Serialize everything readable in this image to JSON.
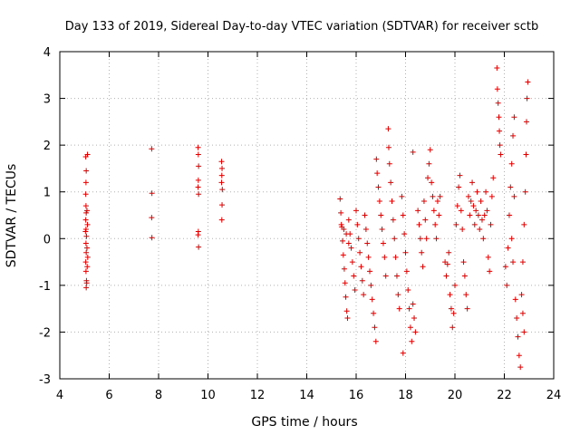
{
  "chart_data": {
    "type": "scatter",
    "title": "Day 133 of 2019, Sidereal Day-to-day VTEC variation (SDTVAR) for receiver sctb",
    "xlabel": "GPS time / hours",
    "ylabel": "SDTVAR / TECUs",
    "xlim": [
      4,
      24
    ],
    "ylim": [
      -3,
      4
    ],
    "xticks": [
      4,
      6,
      8,
      10,
      12,
      14,
      16,
      18,
      20,
      22,
      24
    ],
    "yticks": [
      -3,
      -2,
      -1,
      0,
      1,
      2,
      3,
      4
    ],
    "xtick_labels": [
      "4",
      "6",
      "8",
      "10",
      "12",
      "14",
      "16",
      "18",
      "20",
      "22",
      "24"
    ],
    "ytick_labels": [
      "-3",
      "-2",
      "-1",
      "0",
      "1",
      "2",
      "3",
      "4"
    ],
    "grid": true,
    "marker": "+",
    "color": "#dd0000",
    "series": [
      {
        "name": "SDTVAR",
        "points": [
          [
            5.05,
            1.75
          ],
          [
            5.07,
            1.45
          ],
          [
            5.06,
            1.2
          ],
          [
            5.05,
            0.95
          ],
          [
            5.06,
            0.7
          ],
          [
            5.07,
            0.55
          ],
          [
            5.05,
            0.4
          ],
          [
            5.06,
            0.2
          ],
          [
            5.08,
            0.05
          ],
          [
            5.06,
            -0.1
          ],
          [
            5.07,
            -0.3
          ],
          [
            5.05,
            -0.5
          ],
          [
            5.06,
            -0.7
          ],
          [
            5.08,
            -0.9
          ],
          [
            5.07,
            -1.05
          ],
          [
            5.12,
            0.3
          ],
          [
            5.1,
            -0.2
          ],
          [
            5.12,
            1.8
          ],
          [
            5.1,
            0.6
          ],
          [
            5.09,
            -0.95
          ],
          [
            5.11,
            -0.6
          ],
          [
            5.04,
            0.15
          ],
          [
            5.13,
            -0.4
          ],
          [
            7.72,
            1.92
          ],
          [
            7.73,
            0.97
          ],
          [
            7.72,
            0.45
          ],
          [
            7.73,
            0.02
          ],
          [
            9.6,
            1.95
          ],
          [
            9.62,
            1.55
          ],
          [
            9.61,
            1.25
          ],
          [
            9.6,
            1.1
          ],
          [
            9.62,
            0.95
          ],
          [
            9.61,
            0.15
          ],
          [
            9.6,
            0.08
          ],
          [
            9.62,
            -0.18
          ],
          [
            9.61,
            1.8
          ],
          [
            10.55,
            1.65
          ],
          [
            10.57,
            1.5
          ],
          [
            10.56,
            1.35
          ],
          [
            10.55,
            1.2
          ],
          [
            10.57,
            0.72
          ],
          [
            10.56,
            0.4
          ],
          [
            10.58,
            1.05
          ],
          [
            15.35,
            0.85
          ],
          [
            15.38,
            0.55
          ],
          [
            15.42,
            0.25
          ],
          [
            15.45,
            -0.05
          ],
          [
            15.48,
            -0.35
          ],
          [
            15.52,
            -0.65
          ],
          [
            15.55,
            -0.95
          ],
          [
            15.58,
            -1.25
          ],
          [
            15.62,
            -1.55
          ],
          [
            15.65,
            -1.7
          ],
          [
            15.7,
            0.4
          ],
          [
            15.75,
            0.1
          ],
          [
            15.8,
            -0.2
          ],
          [
            15.85,
            -0.5
          ],
          [
            15.9,
            -0.8
          ],
          [
            15.95,
            -1.1
          ],
          [
            15.4,
            0.3
          ],
          [
            15.5,
            0.2
          ],
          [
            15.6,
            0.1
          ],
          [
            15.7,
            -0.1
          ],
          [
            16.0,
            0.6
          ],
          [
            16.05,
            0.3
          ],
          [
            16.1,
            0.0
          ],
          [
            16.15,
            -0.3
          ],
          [
            16.2,
            -0.6
          ],
          [
            16.25,
            -0.9
          ],
          [
            16.3,
            -1.2
          ],
          [
            16.35,
            0.5
          ],
          [
            16.4,
            0.2
          ],
          [
            16.45,
            -0.1
          ],
          [
            16.5,
            -0.4
          ],
          [
            16.55,
            -0.7
          ],
          [
            16.6,
            -1.0
          ],
          [
            16.65,
            -1.3
          ],
          [
            16.7,
            -1.6
          ],
          [
            16.75,
            -1.9
          ],
          [
            16.8,
            -2.2
          ],
          [
            16.82,
            1.7
          ],
          [
            16.85,
            1.4
          ],
          [
            16.9,
            1.1
          ],
          [
            16.95,
            0.8
          ],
          [
            17.0,
            0.5
          ],
          [
            17.05,
            0.2
          ],
          [
            17.1,
            -0.1
          ],
          [
            17.15,
            -0.4
          ],
          [
            17.2,
            -0.8
          ],
          [
            17.3,
            2.35
          ],
          [
            17.32,
            1.95
          ],
          [
            17.35,
            1.6
          ],
          [
            17.4,
            1.2
          ],
          [
            17.45,
            0.8
          ],
          [
            17.5,
            0.4
          ],
          [
            17.55,
            0.0
          ],
          [
            17.6,
            -0.4
          ],
          [
            17.65,
            -0.8
          ],
          [
            17.7,
            -1.2
          ],
          [
            17.75,
            -1.5
          ],
          [
            17.85,
            0.9
          ],
          [
            17.9,
            0.5
          ],
          [
            17.95,
            0.1
          ],
          [
            18.0,
            -0.3
          ],
          [
            18.05,
            -0.7
          ],
          [
            18.1,
            -1.1
          ],
          [
            18.15,
            -1.5
          ],
          [
            18.2,
            -1.9
          ],
          [
            18.25,
            -2.2
          ],
          [
            17.9,
            -2.45
          ],
          [
            18.3,
            1.85
          ],
          [
            18.3,
            -1.4
          ],
          [
            18.35,
            -1.7
          ],
          [
            18.4,
            -2.0
          ],
          [
            18.5,
            0.6
          ],
          [
            18.55,
            0.3
          ],
          [
            18.6,
            0.0
          ],
          [
            18.65,
            -0.3
          ],
          [
            18.7,
            -0.6
          ],
          [
            18.75,
            0.8
          ],
          [
            18.8,
            0.4
          ],
          [
            18.85,
            0.0
          ],
          [
            18.9,
            1.3
          ],
          [
            18.95,
            1.6
          ],
          [
            19.0,
            1.9
          ],
          [
            19.05,
            1.2
          ],
          [
            19.1,
            0.9
          ],
          [
            19.15,
            0.6
          ],
          [
            19.2,
            0.3
          ],
          [
            19.25,
            0.0
          ],
          [
            19.3,
            0.8
          ],
          [
            19.35,
            0.5
          ],
          [
            19.4,
            0.9
          ],
          [
            19.6,
            -0.5
          ],
          [
            19.65,
            -0.8
          ],
          [
            19.7,
            -0.55
          ],
          [
            19.75,
            -0.3
          ],
          [
            19.8,
            -1.2
          ],
          [
            19.85,
            -1.5
          ],
          [
            19.9,
            -1.9
          ],
          [
            19.95,
            -1.6
          ],
          [
            20.0,
            -1.0
          ],
          [
            20.05,
            0.3
          ],
          [
            20.1,
            0.7
          ],
          [
            20.15,
            1.1
          ],
          [
            20.2,
            1.35
          ],
          [
            20.25,
            0.6
          ],
          [
            20.3,
            0.2
          ],
          [
            20.35,
            -0.5
          ],
          [
            20.4,
            -0.8
          ],
          [
            20.45,
            -1.2
          ],
          [
            20.5,
            -1.5
          ],
          [
            20.55,
            0.9
          ],
          [
            20.6,
            0.5
          ],
          [
            20.65,
            0.8
          ],
          [
            20.7,
            1.2
          ],
          [
            20.75,
            0.7
          ],
          [
            20.8,
            0.3
          ],
          [
            20.85,
            0.6
          ],
          [
            20.9,
            1.0
          ],
          [
            20.95,
            0.5
          ],
          [
            21.0,
            0.2
          ],
          [
            21.05,
            0.8
          ],
          [
            21.1,
            0.4
          ],
          [
            21.15,
            0.0
          ],
          [
            21.2,
            0.5
          ],
          [
            21.25,
            1.0
          ],
          [
            21.3,
            0.6
          ],
          [
            21.35,
            -0.4
          ],
          [
            21.4,
            -0.7
          ],
          [
            21.45,
            0.3
          ],
          [
            21.5,
            0.9
          ],
          [
            21.55,
            1.3
          ],
          [
            21.7,
            3.65
          ],
          [
            21.72,
            3.2
          ],
          [
            21.75,
            2.9
          ],
          [
            21.78,
            2.6
          ],
          [
            21.8,
            2.3
          ],
          [
            21.82,
            2.0
          ],
          [
            21.85,
            1.8
          ],
          [
            22.05,
            -0.6
          ],
          [
            22.1,
            -1.0
          ],
          [
            22.15,
            -0.2
          ],
          [
            22.2,
            0.5
          ],
          [
            22.25,
            1.1
          ],
          [
            22.3,
            1.6
          ],
          [
            22.35,
            2.2
          ],
          [
            22.4,
            2.6
          ],
          [
            22.45,
            -1.3
          ],
          [
            22.5,
            -1.7
          ],
          [
            22.55,
            -2.1
          ],
          [
            22.6,
            -2.5
          ],
          [
            22.65,
            -2.75
          ],
          [
            22.7,
            -1.2
          ],
          [
            22.75,
            -0.5
          ],
          [
            22.8,
            0.3
          ],
          [
            22.85,
            1.0
          ],
          [
            22.88,
            1.8
          ],
          [
            22.9,
            2.5
          ],
          [
            22.92,
            3.0
          ],
          [
            22.95,
            3.35
          ],
          [
            22.75,
            -1.6
          ],
          [
            22.8,
            -2.0
          ],
          [
            22.3,
            0.0
          ],
          [
            22.35,
            -0.5
          ],
          [
            22.4,
            0.9
          ]
        ]
      }
    ]
  }
}
